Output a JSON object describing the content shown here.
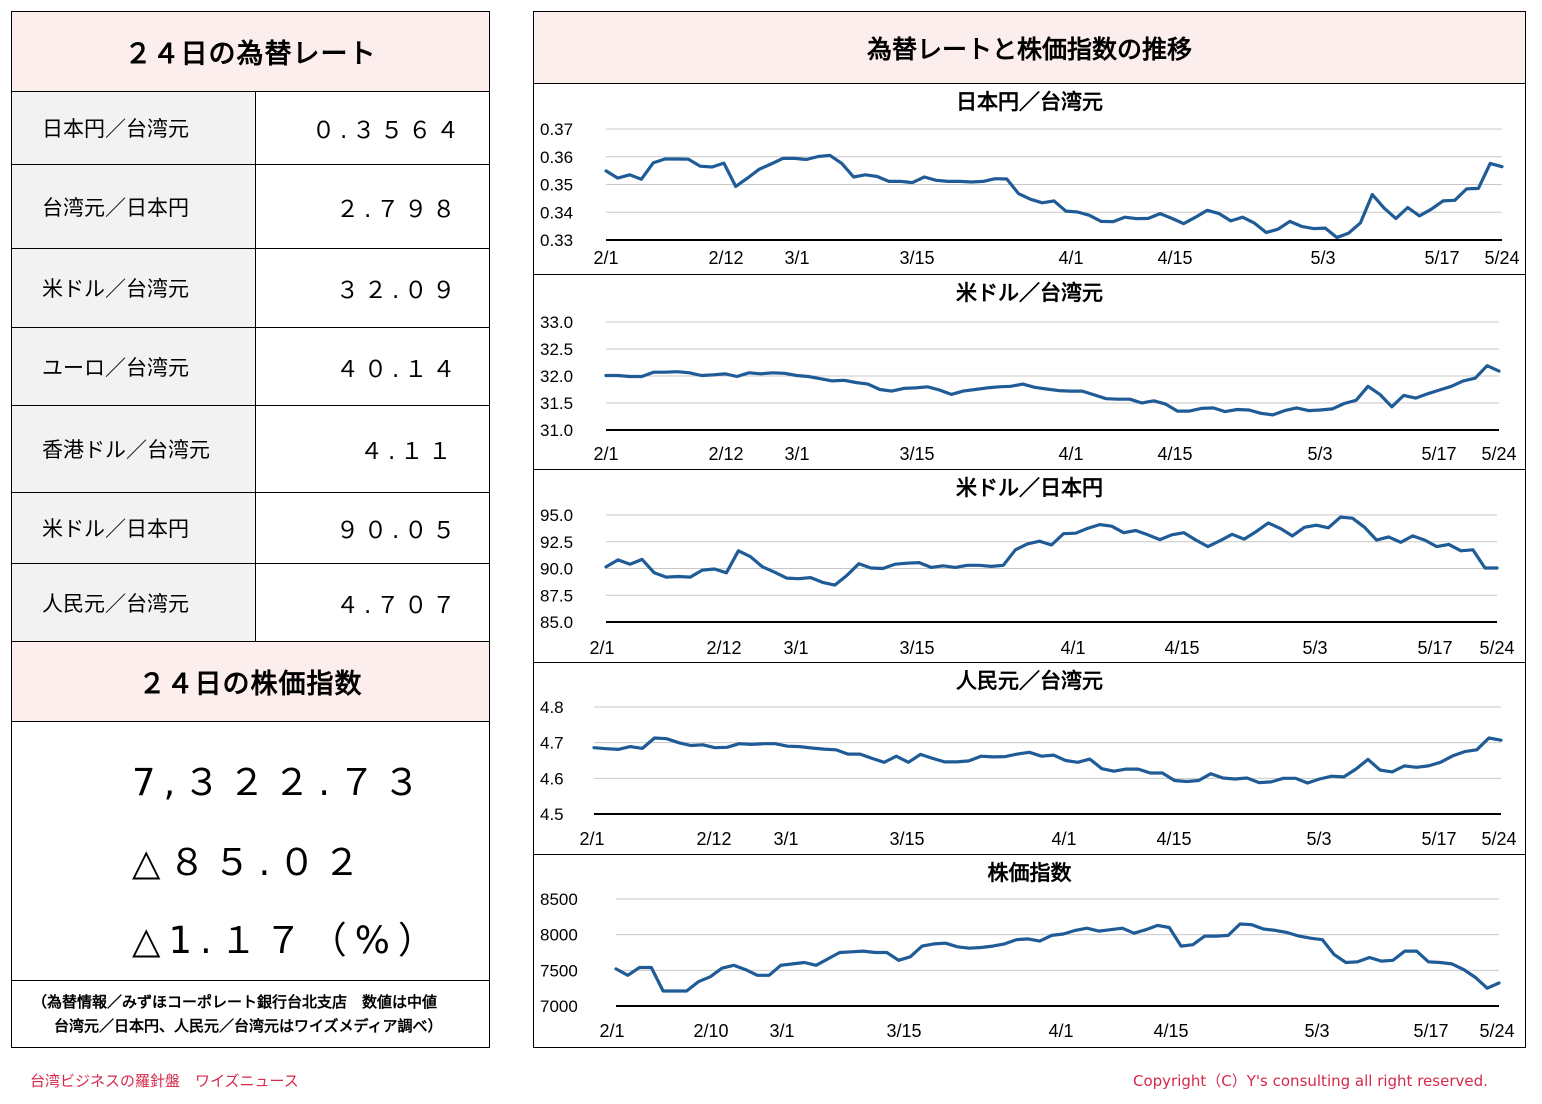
{
  "rates_panel": {
    "title": "２４日の為替レート",
    "rows": [
      {
        "name": "日本円／台湾元",
        "value": "０.３５６４"
      },
      {
        "name": "台湾元／日本円",
        "value": "２.７９８"
      },
      {
        "name": "米ドル／台湾元",
        "value": "３２.０９"
      },
      {
        "name": "ユーロ／台湾元",
        "value": "４０.１４"
      },
      {
        "name": "香港ドル／台湾元",
        "value": "４.１１"
      },
      {
        "name": "米ドル／日本円",
        "value": "９０.０５"
      },
      {
        "name": "人民元／台湾元",
        "value": "４.７０７"
      }
    ]
  },
  "stock_panel": {
    "title": "２４日の株価指数",
    "index_value": "7,３２２.７３",
    "change_points": "△８５.０２",
    "change_percent": "△1.１７（%）"
  },
  "note": {
    "line1": "（為替情報／みずほコーポレート銀行台北支店　数値は中値",
    "line2": "台湾元／日本円、人民元／台湾元はワイズメディア調べ）"
  },
  "charts_panel": {
    "title": "為替レートと株価指数の推移"
  },
  "chart_data": [
    {
      "type": "line",
      "title": "日本円／台湾元",
      "xlabel": "",
      "ylabel": "",
      "ylim": [
        0.33,
        0.37
      ],
      "yticks": [
        "0.37",
        "0.36",
        "0.35",
        "0.34",
        "0.33"
      ],
      "x_labels": [
        "2/1",
        "2/12",
        "3/1",
        "3/15",
        "4/1",
        "4/15",
        "5/3",
        "5/17",
        "5/24"
      ],
      "series": [
        {
          "color": "#1f5b96",
          "values": [
            0.3549,
            0.3523,
            0.3535,
            0.3519,
            0.3578,
            0.3592,
            0.3592,
            0.3591,
            0.3566,
            0.3563,
            0.3577,
            0.3493,
            0.3523,
            0.3555,
            0.3574,
            0.3594,
            0.3594,
            0.359,
            0.3601,
            0.3605,
            0.3576,
            0.3527,
            0.3535,
            0.3529,
            0.3511,
            0.3511,
            0.3507,
            0.3527,
            0.3515,
            0.3511,
            0.3511,
            0.3509,
            0.3511,
            0.3521,
            0.352,
            0.3467,
            0.3447,
            0.3434,
            0.3441,
            0.3404,
            0.3401,
            0.3389,
            0.3367,
            0.3366,
            0.3382,
            0.3377,
            0.3378,
            0.3395,
            0.3378,
            0.3359,
            0.3382,
            0.3407,
            0.3395,
            0.3369,
            0.3382,
            0.3361,
            0.3327,
            0.3339,
            0.3367,
            0.3349,
            0.3341,
            0.3343,
            0.3309,
            0.3325,
            0.3362,
            0.3464,
            0.3415,
            0.3377,
            0.3417,
            0.3387,
            0.3411,
            0.3441,
            0.3443,
            0.3484,
            0.3486,
            0.3576,
            0.3564
          ]
        }
      ]
    },
    {
      "type": "line",
      "title": "米ドル／台湾元",
      "xlabel": "",
      "ylabel": "",
      "ylim": [
        31.0,
        33.0
      ],
      "yticks": [
        "33.0",
        "32.5",
        "32.0",
        "31.5",
        "31.0"
      ],
      "x_labels": [
        "2/1",
        "2/12",
        "3/1",
        "3/15",
        "4/1",
        "4/15",
        "5/3",
        "5/17",
        "5/24"
      ],
      "series": [
        {
          "color": "#1f5b96",
          "values": [
            32.01,
            32.01,
            31.99,
            31.99,
            32.07,
            32.07,
            32.08,
            32.06,
            32.01,
            32.02,
            32.04,
            31.99,
            32.06,
            32.04,
            32.06,
            32.05,
            32.01,
            31.99,
            31.95,
            31.91,
            31.92,
            31.88,
            31.85,
            31.75,
            31.72,
            31.77,
            31.78,
            31.8,
            31.74,
            31.66,
            31.72,
            31.75,
            31.78,
            31.8,
            31.81,
            31.85,
            31.79,
            31.76,
            31.73,
            31.72,
            31.72,
            31.65,
            31.58,
            31.57,
            31.57,
            31.5,
            31.54,
            31.48,
            31.35,
            31.35,
            31.4,
            31.41,
            31.34,
            31.38,
            31.37,
            31.31,
            31.28,
            31.36,
            31.41,
            31.36,
            31.37,
            31.39,
            31.49,
            31.55,
            31.81,
            31.66,
            31.43,
            31.64,
            31.59,
            31.67,
            31.74,
            31.81,
            31.91,
            31.96,
            32.19,
            32.09
          ]
        }
      ]
    },
    {
      "type": "line",
      "title": "米ドル／日本円",
      "xlabel": "",
      "ylabel": "",
      "ylim": [
        85.0,
        95.0
      ],
      "yticks": [
        "95.0",
        "92.5",
        "90.0",
        "87.5",
        "85.0"
      ],
      "x_labels": [
        "2/1",
        "2/12",
        "3/1",
        "3/15",
        "4/1",
        "4/15",
        "5/3",
        "5/17",
        "5/24"
      ],
      "series": [
        {
          "color": "#1f5b96",
          "values": [
            90.15,
            90.8,
            90.4,
            90.85,
            89.6,
            89.2,
            89.25,
            89.2,
            89.85,
            89.95,
            89.6,
            91.65,
            91.1,
            90.15,
            89.65,
            89.1,
            89.05,
            89.15,
            88.7,
            88.45,
            89.35,
            90.45,
            90.05,
            90.0,
            90.4,
            90.5,
            90.55,
            90.1,
            90.25,
            90.1,
            90.3,
            90.3,
            90.2,
            90.3,
            91.75,
            92.3,
            92.55,
            92.2,
            93.25,
            93.3,
            93.75,
            94.1,
            93.95,
            93.35,
            93.55,
            93.15,
            92.7,
            93.15,
            93.35,
            92.65,
            92.05,
            92.6,
            93.2,
            92.75,
            93.45,
            94.25,
            93.75,
            93.05,
            93.85,
            94.05,
            93.8,
            94.8,
            94.7,
            93.85,
            92.65,
            92.95,
            92.45,
            93.05,
            92.65,
            92.05,
            92.25,
            91.65,
            91.75,
            90.05,
            90.05
          ]
        }
      ]
    },
    {
      "type": "line",
      "title": "人民元／台湾元",
      "xlabel": "",
      "ylabel": "",
      "ylim": [
        4.5,
        4.8
      ],
      "yticks": [
        "4.8",
        "4.7",
        "4.6",
        "4.5"
      ],
      "x_labels": [
        "2/1",
        "2/12",
        "3/1",
        "3/15",
        "4/1",
        "4/15",
        "5/3",
        "5/17",
        "5/24"
      ],
      "series": [
        {
          "color": "#1f5b96",
          "values": [
            4.686,
            4.683,
            4.681,
            4.689,
            4.684,
            4.713,
            4.711,
            4.7,
            4.692,
            4.694,
            4.686,
            4.687,
            4.697,
            4.695,
            4.697,
            4.697,
            4.69,
            4.689,
            4.685,
            4.682,
            4.68,
            4.668,
            4.668,
            4.656,
            4.645,
            4.662,
            4.645,
            4.667,
            4.656,
            4.646,
            4.646,
            4.649,
            4.662,
            4.66,
            4.661,
            4.668,
            4.673,
            4.662,
            4.665,
            4.65,
            4.645,
            4.654,
            4.627,
            4.62,
            4.626,
            4.626,
            4.615,
            4.615,
            4.594,
            4.591,
            4.594,
            4.613,
            4.601,
            4.598,
            4.601,
            4.588,
            4.59,
            4.6,
            4.6,
            4.587,
            4.598,
            4.606,
            4.604,
            4.626,
            4.653,
            4.623,
            4.618,
            4.635,
            4.631,
            4.635,
            4.645,
            4.663,
            4.675,
            4.68,
            4.713,
            4.707
          ]
        }
      ]
    },
    {
      "type": "line",
      "title": "株価指数",
      "xlabel": "",
      "ylabel": "",
      "ylim": [
        7000,
        8500
      ],
      "yticks": [
        "8500",
        "8000",
        "7500",
        "7000"
      ],
      "x_labels": [
        "2/1",
        "2/10",
        "3/1",
        "3/15",
        "4/1",
        "4/15",
        "5/3",
        "5/17",
        "5/24"
      ],
      "series": [
        {
          "color": "#1f5b96",
          "values": [
            7520,
            7430,
            7540,
            7540,
            7210,
            7210,
            7210,
            7340,
            7410,
            7530,
            7570,
            7510,
            7430,
            7430,
            7570,
            7590,
            7610,
            7570,
            7660,
            7750,
            7760,
            7770,
            7750,
            7750,
            7640,
            7690,
            7840,
            7870,
            7880,
            7830,
            7810,
            7820,
            7840,
            7870,
            7930,
            7940,
            7910,
            7990,
            8010,
            8060,
            8090,
            8050,
            8070,
            8090,
            8020,
            8070,
            8130,
            8100,
            7840,
            7860,
            7980,
            7980,
            7990,
            8150,
            8140,
            8080,
            8060,
            8030,
            7980,
            7950,
            7930,
            7720,
            7610,
            7620,
            7680,
            7630,
            7640,
            7770,
            7770,
            7620,
            7610,
            7590,
            7510,
            7400,
            7250,
            7322
          ]
        }
      ]
    }
  ],
  "footer": {
    "left": "台湾ビジネスの羅針盤　ワイズニュース",
    "right": "Copyright（C）Y's consulting all right reserved."
  }
}
